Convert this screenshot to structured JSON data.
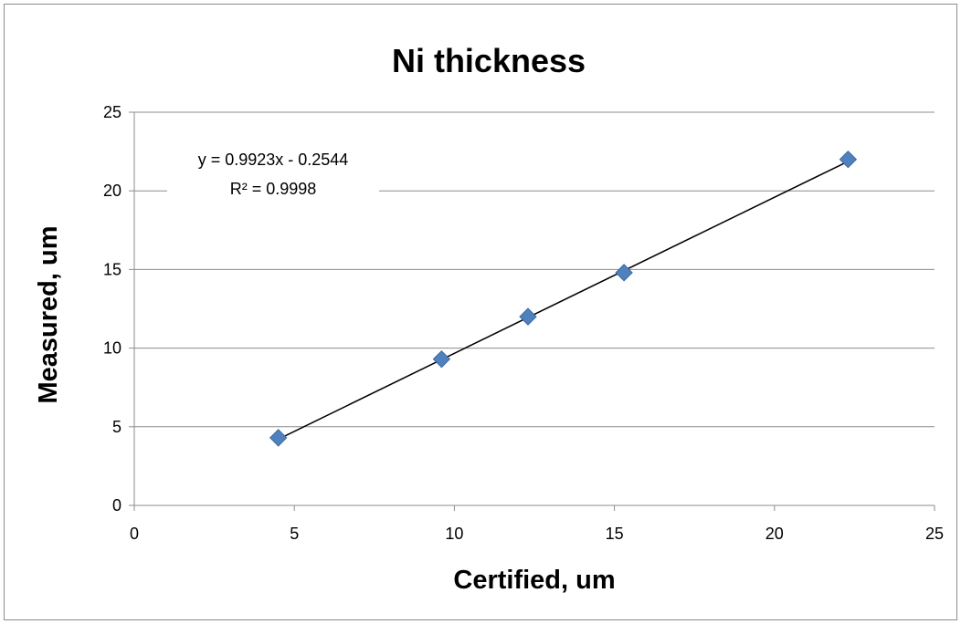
{
  "chart_data": {
    "type": "scatter",
    "title": "Ni thickness",
    "xlabel": "Certified, um",
    "ylabel": "Measured, um",
    "xlim": [
      0,
      25
    ],
    "ylim": [
      0,
      25
    ],
    "x_ticks": [
      "0",
      "5",
      "10",
      "15",
      "20",
      "25"
    ],
    "y_ticks": [
      "0",
      "5",
      "10",
      "15",
      "20",
      "25"
    ],
    "grid": "horizontal",
    "legend": "none",
    "series": [
      {
        "marker": "diamond",
        "color": "#4f81bd",
        "points": [
          {
            "x": 4.5,
            "y": 4.3
          },
          {
            "x": 9.6,
            "y": 9.3
          },
          {
            "x": 12.3,
            "y": 12.0
          },
          {
            "x": 15.3,
            "y": 14.8
          },
          {
            "x": 22.3,
            "y": 22.0
          }
        ]
      }
    ],
    "trendline": {
      "type": "linear",
      "slope": 0.9923,
      "intercept": -0.2544,
      "x_range": [
        4.5,
        22.3
      ],
      "color": "#000000",
      "equation_text": "y = 0.9923x - 0.2544",
      "r2_text": "R² = 0.9998"
    }
  }
}
